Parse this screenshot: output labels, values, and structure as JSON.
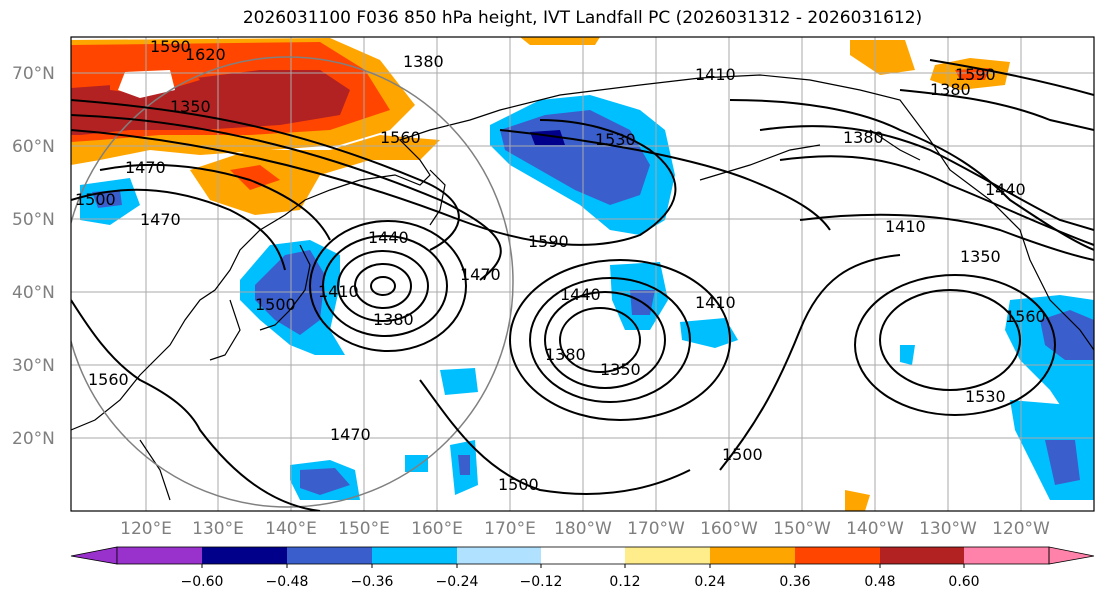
{
  "title": "2026031100 F036 850 hPa height, IVT Landfall PC (2026031312 - 2026031612)",
  "lat_labels": [
    "70°N",
    "60°N",
    "50°N",
    "40°N",
    "30°N",
    "20°N"
  ],
  "lon_labels": [
    "120°E",
    "130°E",
    "140°E",
    "150°E",
    "160°E",
    "170°E",
    "180°W",
    "170°W",
    "160°W",
    "150°W",
    "140°W",
    "130°W",
    "120°W"
  ],
  "colorbar": {
    "ticks": [
      "−0.60",
      "−0.48",
      "−0.36",
      "−0.24",
      "−0.12",
      "0.12",
      "0.24",
      "0.36",
      "0.48",
      "0.60"
    ],
    "colors": [
      "#9932cc",
      "#00008b",
      "#3a5fcd",
      "#00bfff",
      "#b0e2ff",
      "#ffffff",
      "#ffec8b",
      "#ffa500",
      "#ff4500",
      "#b22222",
      "#ff82ab"
    ]
  },
  "contour_labels": [
    "1590",
    "1620",
    "1350",
    "1380",
    "1410",
    "1560",
    "1530",
    "1380",
    "1500",
    "1470",
    "1470",
    "1440",
    "1590",
    "1410",
    "1470",
    "1500",
    "1410",
    "1440",
    "1380",
    "1350",
    "1410",
    "1380",
    "1560",
    "1470",
    "1500",
    "1500",
    "1380",
    "1440",
    "1350",
    "1530",
    "1560",
    "1590"
  ]
}
